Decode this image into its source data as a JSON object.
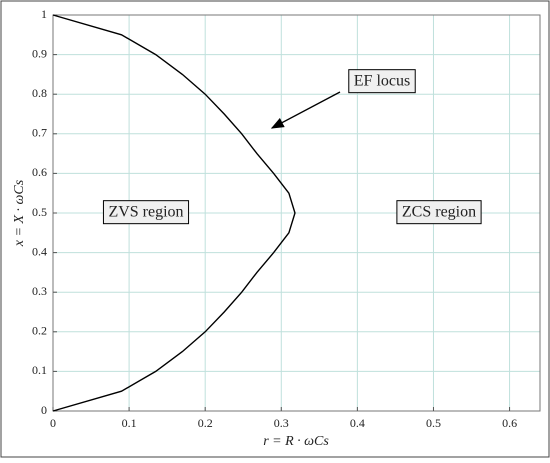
{
  "chart_data": {
    "type": "line",
    "x_label": "r = R · ωCs",
    "y_label": "x = X · ωCs",
    "x": [
      0,
      0.09,
      0.135,
      0.17,
      0.2,
      0.225,
      0.248,
      0.268,
      0.29,
      0.31,
      0.318,
      0.31,
      0.29,
      0.268,
      0.248,
      0.225,
      0.2,
      0.17,
      0.135,
      0.09,
      0
    ],
    "values": [
      0,
      0.05,
      0.1,
      0.15,
      0.2,
      0.25,
      0.3,
      0.35,
      0.4,
      0.45,
      0.5,
      0.55,
      0.6,
      0.65,
      0.7,
      0.75,
      0.8,
      0.85,
      0.9,
      0.95,
      1
    ],
    "color": "#000000",
    "xlim": [
      0,
      0.64
    ],
    "ylim": [
      0,
      1
    ],
    "xticks": [
      0,
      0.1,
      0.2,
      0.3,
      0.4,
      0.5,
      0.6
    ],
    "yticks": [
      0,
      0.1,
      0.2,
      0.3,
      0.4,
      0.5,
      0.6,
      0.7,
      0.8,
      0.9,
      1
    ],
    "grid": true,
    "annotations": [
      "EF locus",
      "ZVS region",
      "ZCS region"
    ]
  }
}
